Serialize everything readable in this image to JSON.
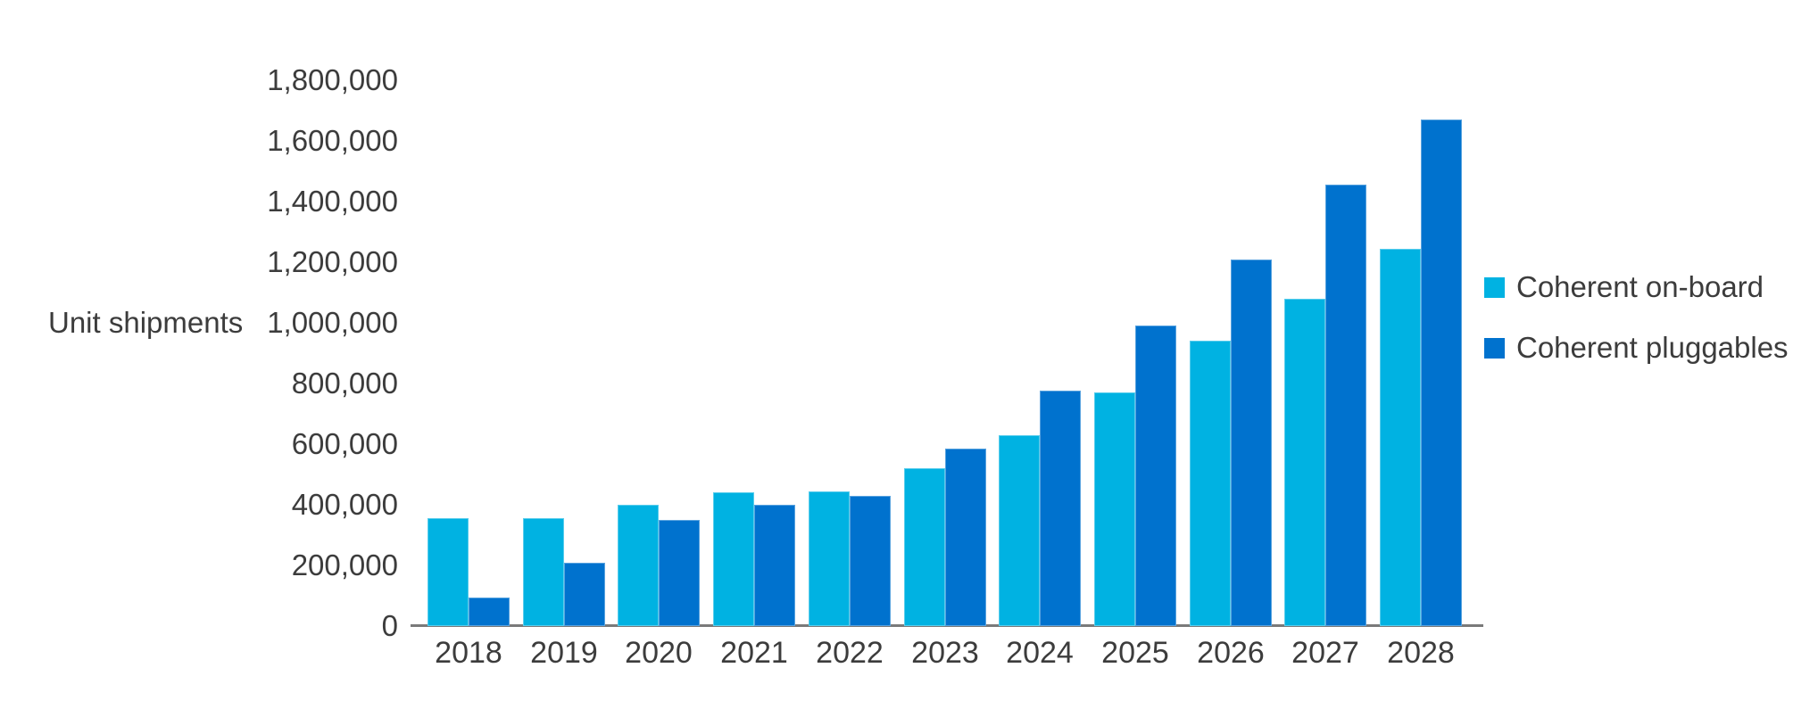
{
  "chart_data": {
    "type": "bar",
    "title": "",
    "ylabel": "Unit shipments",
    "xlabel": "",
    "categories": [
      "2018",
      "2019",
      "2020",
      "2021",
      "2022",
      "2023",
      "2024",
      "2025",
      "2026",
      "2027",
      "2028"
    ],
    "series": [
      {
        "name": "Coherent on-board",
        "color": "#00b2e2",
        "values": [
          355000,
          355000,
          400000,
          440000,
          445000,
          520000,
          630000,
          770000,
          940000,
          1080000,
          1245000
        ]
      },
      {
        "name": "Coherent pluggables",
        "color": "#0072ce",
        "values": [
          95000,
          210000,
          350000,
          400000,
          430000,
          585000,
          775000,
          990000,
          1210000,
          1455000,
          1670000
        ]
      }
    ],
    "ylim": [
      0,
      1800000
    ],
    "ytick_step": 200000,
    "yticks": [
      "0",
      "200,000",
      "400,000",
      "600,000",
      "800,000",
      "1,000,000",
      "1,200,000",
      "1,400,000",
      "1,600,000",
      "1,800,000"
    ],
    "grid": false,
    "legend_position": "right"
  },
  "colors": {
    "axis_line": "#7a7a7a",
    "text": "#3c3c3c",
    "background": "#ffffff"
  }
}
